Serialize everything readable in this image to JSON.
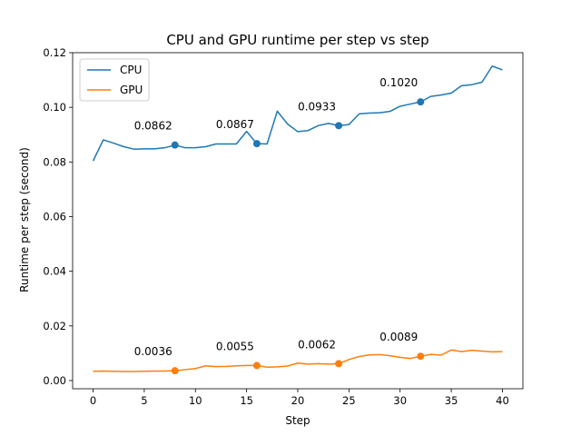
{
  "chart_data": {
    "type": "line",
    "title": "CPU and GPU runtime per step vs step",
    "xlabel": "Step",
    "ylabel": "Runtime per step (second)",
    "xlim": [
      -2,
      42
    ],
    "ylim": [
      -0.003,
      0.12
    ],
    "xticks": [
      0,
      5,
      10,
      15,
      20,
      25,
      30,
      35,
      40
    ],
    "yticks": [
      0.0,
      0.02,
      0.04,
      0.06,
      0.08,
      0.1,
      0.12
    ],
    "ytick_labels": [
      "0.00",
      "0.02",
      "0.04",
      "0.06",
      "0.08",
      "0.10",
      "0.12"
    ],
    "legend_position": "top-left",
    "x": [
      0,
      1,
      2,
      3,
      4,
      5,
      6,
      7,
      8,
      9,
      10,
      11,
      12,
      13,
      14,
      15,
      16,
      17,
      18,
      19,
      20,
      21,
      22,
      23,
      24,
      25,
      26,
      27,
      28,
      29,
      30,
      31,
      32,
      33,
      34,
      35,
      36,
      37,
      38,
      39,
      40
    ],
    "series": [
      {
        "name": "CPU",
        "color": "#1f77b4",
        "values": [
          0.0804,
          0.0881,
          0.0869,
          0.0856,
          0.0847,
          0.0848,
          0.0848,
          0.0852,
          0.0862,
          0.0852,
          0.0852,
          0.0856,
          0.0866,
          0.0866,
          0.0866,
          0.0912,
          0.0867,
          0.0866,
          0.0986,
          0.0939,
          0.0911,
          0.0915,
          0.0933,
          0.0941,
          0.0933,
          0.0937,
          0.0976,
          0.0979,
          0.098,
          0.0985,
          0.1004,
          0.1012,
          0.102,
          0.104,
          0.1045,
          0.1052,
          0.1079,
          0.1083,
          0.1092,
          0.1151,
          0.1137
        ],
        "markers": [
          {
            "x": 8,
            "y": 0.0862,
            "label": "0.0862"
          },
          {
            "x": 16,
            "y": 0.0867,
            "label": "0.0867"
          },
          {
            "x": 24,
            "y": 0.0933,
            "label": "0.0933"
          },
          {
            "x": 32,
            "y": 0.102,
            "label": "0.1020"
          }
        ]
      },
      {
        "name": "GPU",
        "color": "#ff7f0e",
        "values": [
          0.0034,
          0.0035,
          0.0034,
          0.0033,
          0.0033,
          0.0034,
          0.0035,
          0.0035,
          0.0036,
          0.004,
          0.0044,
          0.0054,
          0.0051,
          0.0052,
          0.0054,
          0.0055,
          0.0055,
          0.0049,
          0.005,
          0.0053,
          0.0064,
          0.006,
          0.0062,
          0.006,
          0.0062,
          0.0077,
          0.0088,
          0.0094,
          0.0095,
          0.0091,
          0.0085,
          0.0081,
          0.0089,
          0.0096,
          0.0093,
          0.0112,
          0.0106,
          0.0111,
          0.0108,
          0.0105,
          0.0106
        ],
        "markers": [
          {
            "x": 8,
            "y": 0.0036,
            "label": "0.0036"
          },
          {
            "x": 16,
            "y": 0.0055,
            "label": "0.0055"
          },
          {
            "x": 24,
            "y": 0.0062,
            "label": "0.0062"
          },
          {
            "x": 32,
            "y": 0.0089,
            "label": "0.0089"
          }
        ]
      }
    ]
  }
}
